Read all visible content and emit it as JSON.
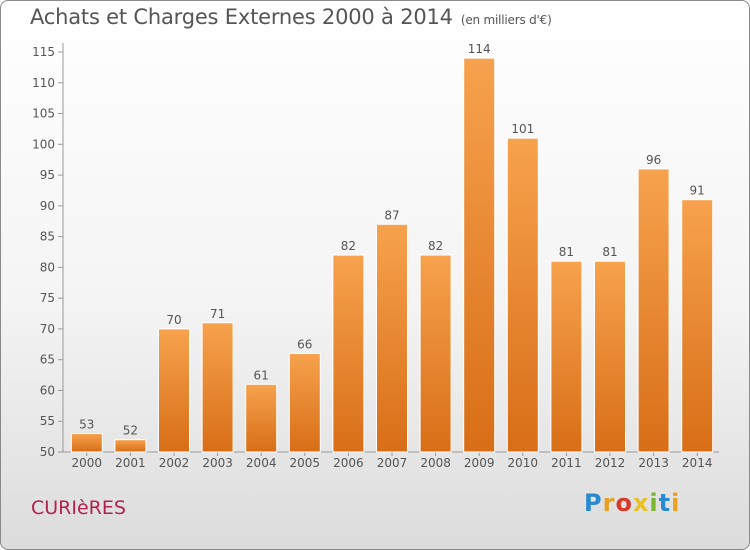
{
  "header": {
    "title": "Achats et Charges Externes 2000 à 2014",
    "unit": "(en milliers d'€)"
  },
  "footer": {
    "commune": "CURIèRES",
    "logo": "Proxiti"
  },
  "colors": {
    "bar_top": "#f7a24e",
    "bar_bottom": "#d86e17",
    "bar_stroke": "#ffffff",
    "text": "#555555",
    "commune": "#b0234e"
  },
  "chart_data": {
    "type": "bar",
    "title": "Achats et Charges Externes 2000 à 2014",
    "subtitle": "(en milliers d'€)",
    "categories": [
      "2000",
      "2001",
      "2002",
      "2003",
      "2004",
      "2005",
      "2006",
      "2007",
      "2008",
      "2009",
      "2010",
      "2011",
      "2012",
      "2013",
      "2014"
    ],
    "values": [
      53,
      52,
      70,
      71,
      61,
      66,
      82,
      87,
      82,
      114,
      101,
      81,
      81,
      96,
      91
    ],
    "ylim": [
      50,
      115
    ],
    "yticks": [
      50,
      55,
      60,
      65,
      70,
      75,
      80,
      85,
      90,
      95,
      100,
      105,
      110,
      115
    ],
    "xlabel": "",
    "ylabel": "",
    "grid": false,
    "data_labels": true
  }
}
